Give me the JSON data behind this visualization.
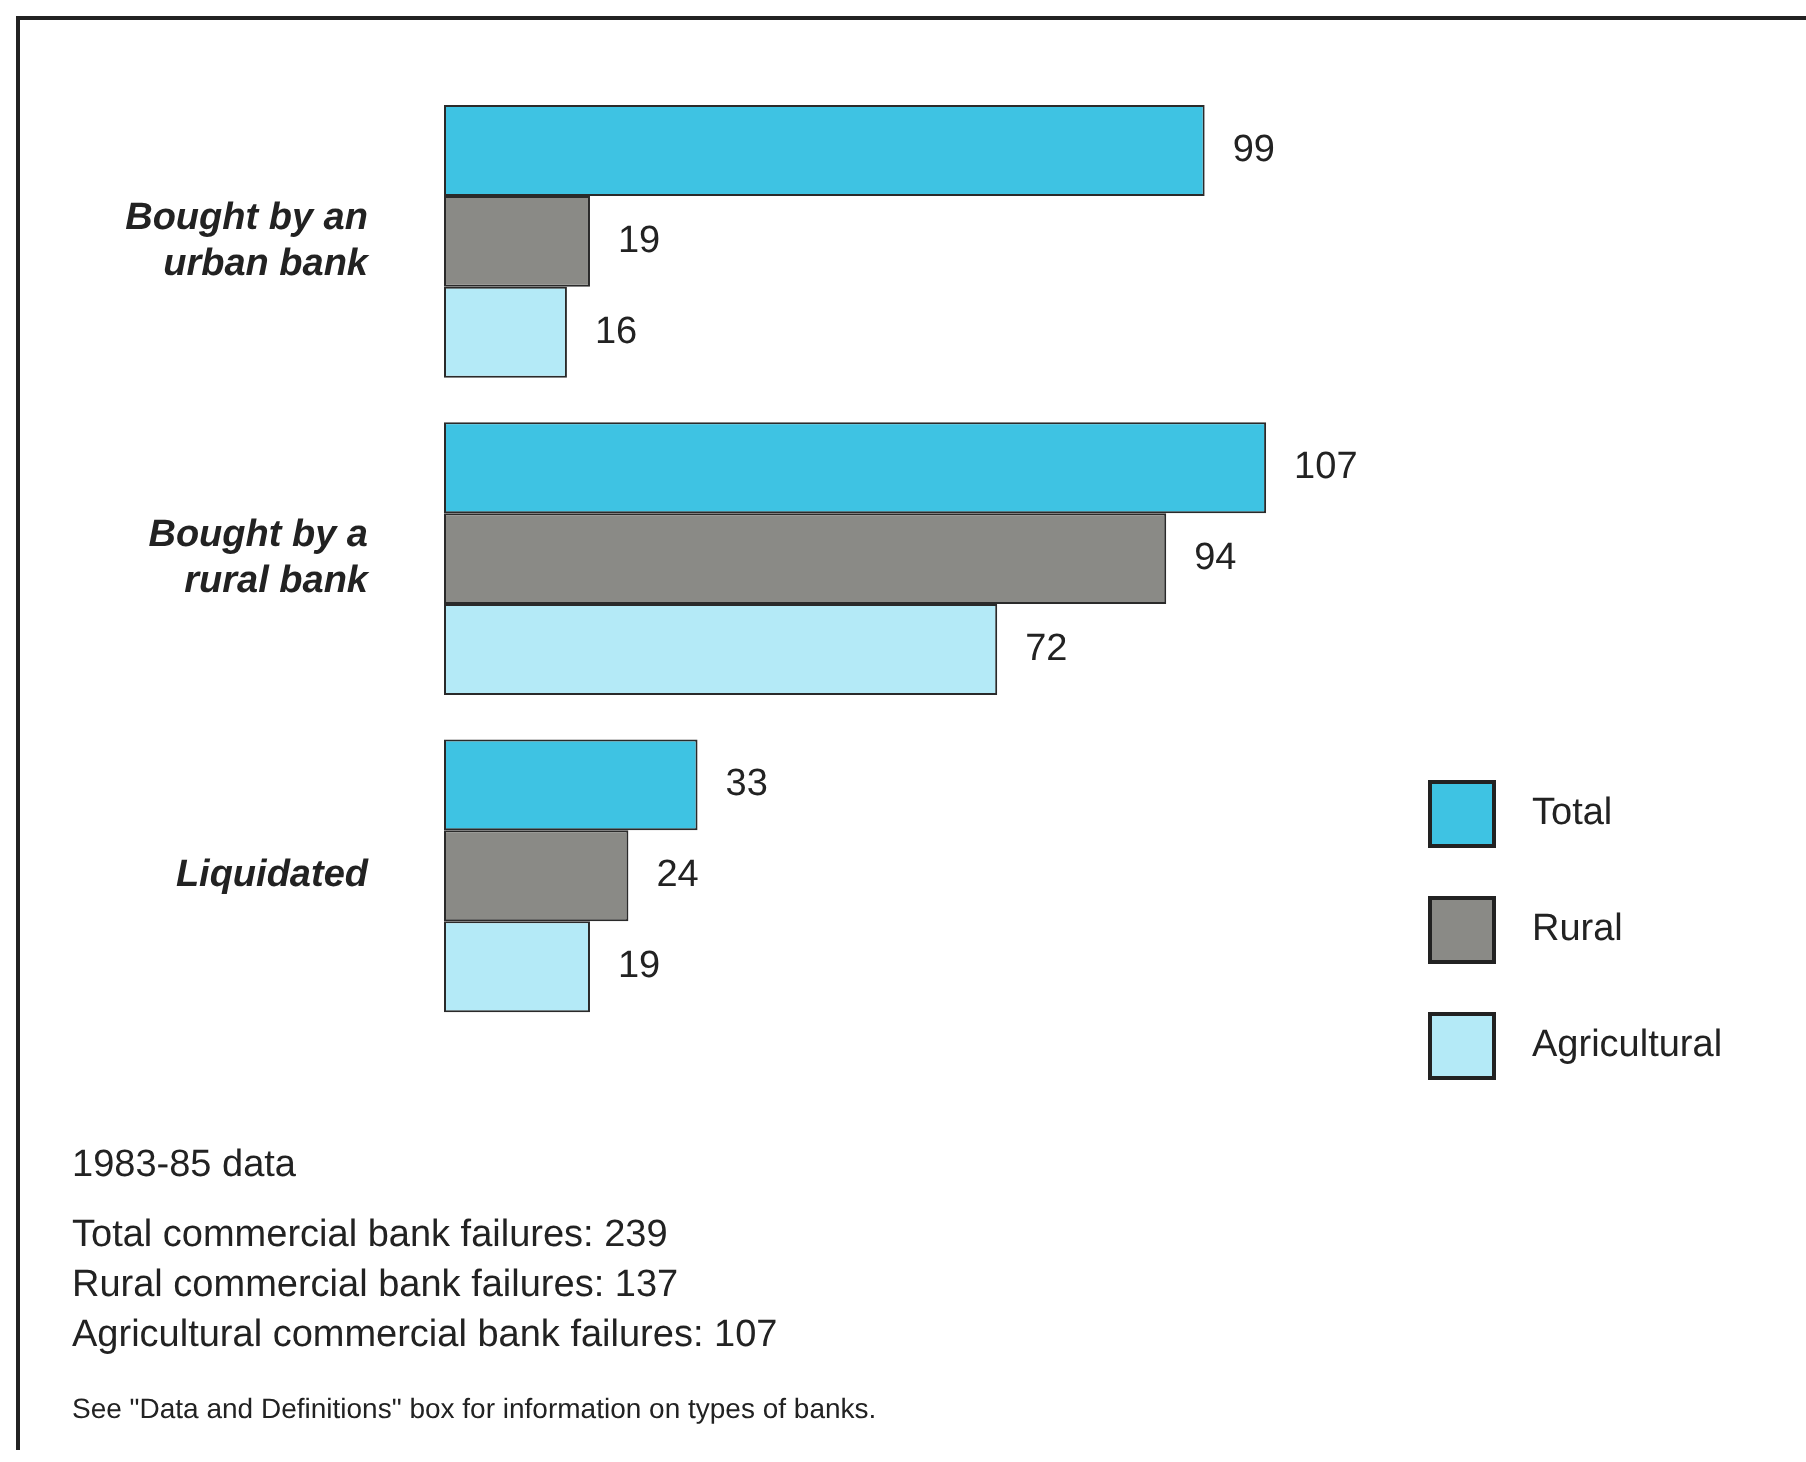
{
  "chart_data": {
    "type": "bar",
    "orientation": "horizontal",
    "categories": [
      "Bought by an urban bank",
      "Bought by a rural bank",
      "Liquidated"
    ],
    "series": [
      {
        "name": "Total",
        "color": "#3ec3e3",
        "values": [
          99,
          107,
          33
        ]
      },
      {
        "name": "Rural",
        "color": "#8a8a86",
        "values": [
          19,
          94,
          24
        ]
      },
      {
        "name": "Agricultural",
        "color": "#b4eaf7",
        "values": [
          16,
          72,
          19
        ]
      }
    ],
    "tick_labels": "y",
    "legend": "right",
    "data_labels": true,
    "annotations": [
      "1983-85 data",
      "Total commercial bank failures: 239",
      "Rural commercial bank failures: 137",
      "Agricultural commercial bank failures: 107",
      "See \"Data and Definitions\" box for information on types of banks."
    ]
  }
}
